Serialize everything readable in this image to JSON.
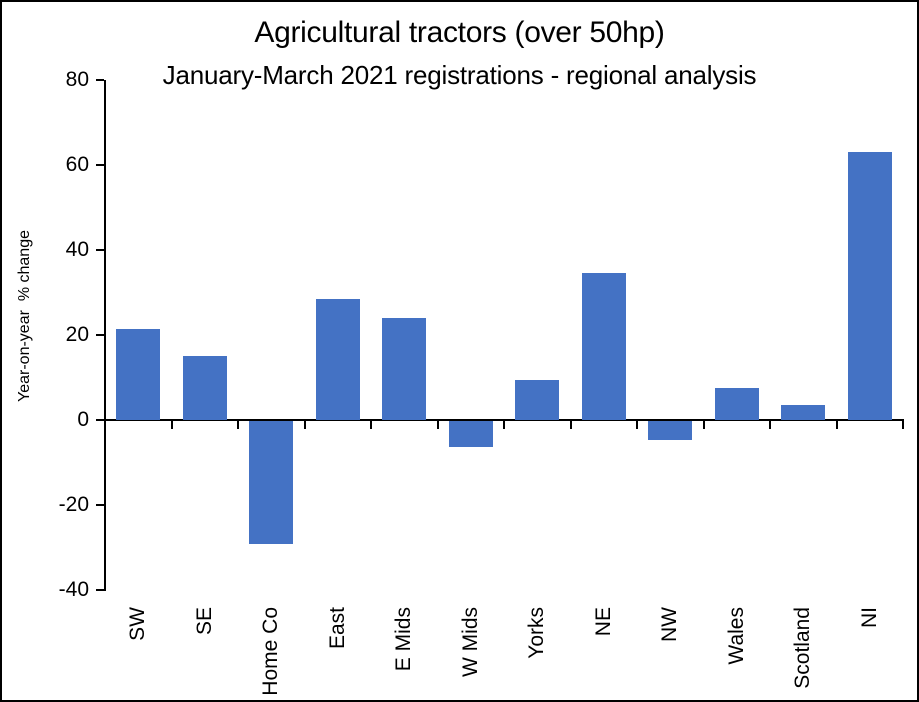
{
  "chart_data": {
    "type": "bar",
    "title": "Agricultural tractors (over 50hp)",
    "subtitle": "January-March 2021 registrations - regional analysis",
    "ylabel": "Year-on-year  % change",
    "xlabel": "",
    "categories": [
      "SW",
      "SE",
      "Home Co",
      "East",
      "E Mids",
      "W Mids",
      "Yorks",
      "NE",
      "NW",
      "Wales",
      "Scotland",
      "NI"
    ],
    "values": [
      21.5,
      15,
      -29,
      28.5,
      24,
      -6,
      9.5,
      34.5,
      -4.5,
      7.5,
      3.5,
      63
    ],
    "ylim": [
      -40,
      80
    ],
    "ytick_step": 20,
    "yticks": [
      80,
      60,
      40,
      20,
      0,
      -20,
      -40
    ],
    "grid": false,
    "legend": false,
    "bar_color": "#4472C4",
    "axis_color": "#000000",
    "background_color": "#FFFFFF"
  }
}
